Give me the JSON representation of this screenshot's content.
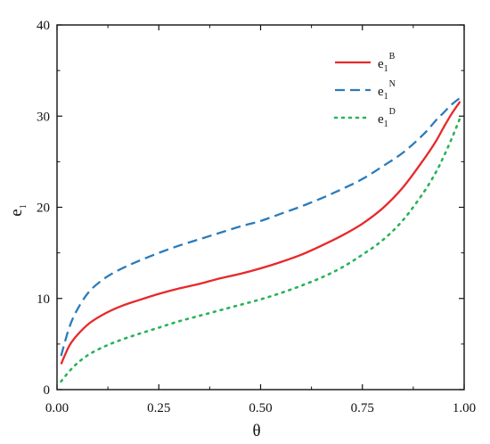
{
  "chart_data": {
    "type": "line",
    "xlabel": "θ",
    "ylabel": "e",
    "ylabel_subscript": "1",
    "xlim": [
      0.0,
      1.0
    ],
    "ylim": [
      0,
      40
    ],
    "x_ticks": [
      "0.00",
      "0.25",
      "0.50",
      "0.75",
      "1.00"
    ],
    "y_ticks": [
      "0",
      "10",
      "20",
      "30",
      "40"
    ],
    "legend_position": "top-right",
    "grid": false,
    "series": [
      {
        "name": "e1B",
        "label_base": "e",
        "label_sub": "1",
        "label_sup": "B",
        "color": "#e8282a",
        "style": "solid",
        "x": [
          0.01,
          0.03,
          0.05,
          0.08,
          0.12,
          0.16,
          0.2,
          0.25,
          0.3,
          0.35,
          0.4,
          0.45,
          0.5,
          0.55,
          0.6,
          0.65,
          0.7,
          0.75,
          0.8,
          0.85,
          0.9,
          0.93,
          0.95,
          0.97,
          0.99
        ],
        "y": [
          2.8,
          4.8,
          6.0,
          7.3,
          8.4,
          9.2,
          9.8,
          10.5,
          11.1,
          11.6,
          12.2,
          12.7,
          13.3,
          14.0,
          14.8,
          15.8,
          16.9,
          18.2,
          19.9,
          22.2,
          25.2,
          27.2,
          28.8,
          30.3,
          31.6
        ]
      },
      {
        "name": "e1N",
        "label_base": "e",
        "label_sub": "1",
        "label_sup": "N",
        "color": "#2b7bba",
        "style": "dashed",
        "x": [
          0.01,
          0.03,
          0.05,
          0.08,
          0.12,
          0.16,
          0.2,
          0.25,
          0.3,
          0.35,
          0.4,
          0.45,
          0.5,
          0.55,
          0.6,
          0.65,
          0.7,
          0.75,
          0.8,
          0.85,
          0.9,
          0.93,
          0.95,
          0.97,
          0.99
        ],
        "y": [
          3.7,
          6.8,
          8.8,
          10.8,
          12.3,
          13.3,
          14.1,
          15.0,
          15.8,
          16.5,
          17.2,
          17.9,
          18.5,
          19.3,
          20.1,
          21.0,
          22.0,
          23.1,
          24.5,
          26.0,
          28.0,
          29.5,
          30.4,
          31.3,
          32.0
        ]
      },
      {
        "name": "e1D",
        "label_base": "e",
        "label_sub": "1",
        "label_sup": "D",
        "color": "#29b35a",
        "style": "dotted",
        "x": [
          0.01,
          0.03,
          0.05,
          0.08,
          0.12,
          0.16,
          0.2,
          0.25,
          0.3,
          0.35,
          0.4,
          0.45,
          0.5,
          0.55,
          0.6,
          0.65,
          0.7,
          0.75,
          0.8,
          0.85,
          0.9,
          0.93,
          0.95,
          0.97,
          0.99
        ],
        "y": [
          0.9,
          2.0,
          2.9,
          3.9,
          4.8,
          5.5,
          6.1,
          6.8,
          7.5,
          8.1,
          8.7,
          9.3,
          9.9,
          10.6,
          11.4,
          12.3,
          13.4,
          14.8,
          16.4,
          18.6,
          21.6,
          23.8,
          25.6,
          27.6,
          29.8
        ]
      }
    ]
  }
}
